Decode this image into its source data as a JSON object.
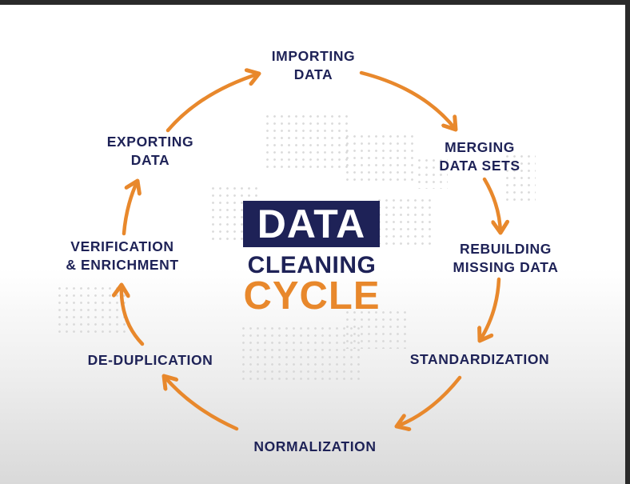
{
  "center_title": {
    "line1": "DATA",
    "line2": "CLEANING",
    "line3": "CYCLE"
  },
  "steps": [
    {
      "line1": "IMPORTING",
      "line2": "DATA"
    },
    {
      "line1": "MERGING",
      "line2": "DATA SETS"
    },
    {
      "line1": "REBUILDING",
      "line2": "MISSING DATA"
    },
    {
      "line1": "STANDARDIZATION",
      "line2": ""
    },
    {
      "line1": "NORMALIZATION",
      "line2": ""
    },
    {
      "line1": "DE-DUPLICATION",
      "line2": ""
    },
    {
      "line1": "VERIFICATION",
      "line2": "& ENRICHMENT"
    },
    {
      "line1": "EXPORTING",
      "line2": "DATA"
    }
  ],
  "colors": {
    "navy": "#1e2257",
    "orange": "#e8882c"
  }
}
